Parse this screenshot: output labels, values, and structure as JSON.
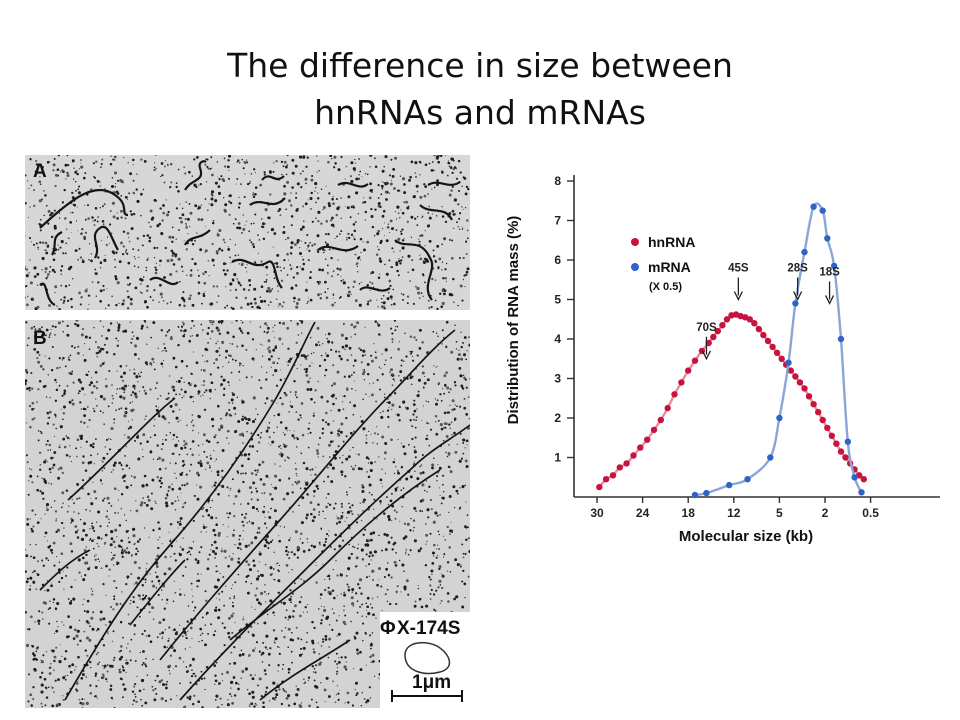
{
  "title": {
    "line1": "The difference in size between",
    "line2": "hnRNAs and mRNAs"
  },
  "micrograph": {
    "panel_a": "A",
    "panel_b": "B",
    "phi_symbol": "Φ",
    "phi_label": "X-174S",
    "scale_label": "1μm"
  },
  "chart_data": {
    "type": "scatter",
    "title": "",
    "xlabel": "Molecular size (kb)",
    "ylabel": "Distribution of RNA mass (%)",
    "x_ticks": [
      "30",
      "24",
      "18",
      "12",
      "5",
      "2",
      "0.5"
    ],
    "y_ticks": [
      "1",
      "2",
      "3",
      "4",
      "5",
      "6",
      "7",
      "8"
    ],
    "ylim": [
      0,
      8
    ],
    "x_axis_note": "categorical size positions, decreasing to the right",
    "legend": {
      "position": "top-left",
      "entries": [
        {
          "label": "hnRNA",
          "color": "#c8133f"
        },
        {
          "label": "mRNA",
          "color": "#2f63c8",
          "sublabel": "(X 0.5)"
        }
      ]
    },
    "annotations": [
      {
        "label": "70S",
        "x_index": 2.4,
        "y_tip": 3.5
      },
      {
        "label": "45S",
        "x_index": 3.1,
        "y_tip": 5.0
      },
      {
        "label": "28S",
        "x_index": 4.4,
        "y_tip": 5.0
      },
      {
        "label": "18S",
        "x_index": 5.1,
        "y_tip": 4.9
      }
    ],
    "series": [
      {
        "name": "hnRNA",
        "color": "#c8133f",
        "curve_color": "#e68e97",
        "points": [
          [
            0.05,
            0.25
          ],
          [
            0.2,
            0.45
          ],
          [
            0.35,
            0.55
          ],
          [
            0.5,
            0.75
          ],
          [
            0.65,
            0.85
          ],
          [
            0.8,
            1.05
          ],
          [
            0.95,
            1.25
          ],
          [
            1.1,
            1.45
          ],
          [
            1.25,
            1.7
          ],
          [
            1.4,
            1.95
          ],
          [
            1.55,
            2.25
          ],
          [
            1.7,
            2.6
          ],
          [
            1.85,
            2.9
          ],
          [
            2.0,
            3.2
          ],
          [
            2.15,
            3.45
          ],
          [
            2.3,
            3.7
          ],
          [
            2.45,
            3.9
          ],
          [
            2.55,
            4.05
          ],
          [
            2.65,
            4.2
          ],
          [
            2.75,
            4.35
          ],
          [
            2.85,
            4.5
          ],
          [
            2.95,
            4.6
          ],
          [
            3.05,
            4.62
          ],
          [
            3.15,
            4.58
          ],
          [
            3.25,
            4.55
          ],
          [
            3.35,
            4.5
          ],
          [
            3.45,
            4.4
          ],
          [
            3.55,
            4.25
          ],
          [
            3.65,
            4.1
          ],
          [
            3.75,
            3.95
          ],
          [
            3.85,
            3.8
          ],
          [
            3.95,
            3.65
          ],
          [
            4.05,
            3.5
          ],
          [
            4.15,
            3.35
          ],
          [
            4.25,
            3.2
          ],
          [
            4.35,
            3.05
          ],
          [
            4.45,
            2.9
          ],
          [
            4.55,
            2.75
          ],
          [
            4.65,
            2.55
          ],
          [
            4.75,
            2.35
          ],
          [
            4.85,
            2.15
          ],
          [
            4.95,
            1.95
          ],
          [
            5.05,
            1.75
          ],
          [
            5.15,
            1.55
          ],
          [
            5.25,
            1.35
          ],
          [
            5.35,
            1.15
          ],
          [
            5.45,
            1.0
          ],
          [
            5.55,
            0.85
          ],
          [
            5.65,
            0.7
          ],
          [
            5.75,
            0.55
          ],
          [
            5.85,
            0.45
          ]
        ]
      },
      {
        "name": "mRNA",
        "color": "#2f63c8",
        "curve_color": "#8aa6d8",
        "points": [
          [
            2.15,
            0.05
          ],
          [
            2.4,
            0.1
          ],
          [
            2.9,
            0.3
          ],
          [
            3.3,
            0.45
          ],
          [
            3.8,
            1.0
          ],
          [
            4.0,
            2.0
          ],
          [
            4.2,
            3.4
          ],
          [
            4.35,
            4.9
          ],
          [
            4.55,
            6.2
          ],
          [
            4.75,
            7.35
          ],
          [
            4.95,
            7.25
          ],
          [
            5.05,
            6.55
          ],
          [
            5.2,
            5.85
          ],
          [
            5.35,
            4.0
          ],
          [
            5.5,
            1.4
          ],
          [
            5.65,
            0.5
          ],
          [
            5.8,
            0.12
          ]
        ]
      }
    ]
  }
}
